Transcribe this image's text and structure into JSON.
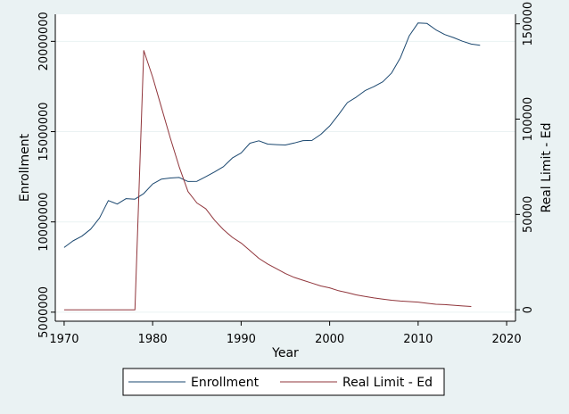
{
  "chart_data": {
    "type": "line",
    "title": "",
    "xlabel": "Year",
    "ylabel_left": "Enrollment",
    "ylabel_right": "Real Limit - Ed",
    "xlim": [
      1969,
      2021
    ],
    "ylim_left": [
      4500000,
      21500000
    ],
    "ylim_right": [
      -6000,
      155000
    ],
    "x_ticks": [
      1970,
      1980,
      1990,
      2000,
      2010,
      2020
    ],
    "y_ticks_left": [
      5000000,
      10000000,
      15000000,
      20000000
    ],
    "y_ticks_right": [
      0,
      50000,
      100000,
      150000
    ],
    "grid": true,
    "legend_position": "bottom",
    "series": [
      {
        "name": "Enrollment",
        "axis": "left",
        "color": "#1a476f",
        "x": [
          1970,
          1971,
          1972,
          1973,
          1974,
          1975,
          1976,
          1977,
          1978,
          1979,
          1980,
          1981,
          1982,
          1983,
          1984,
          1985,
          1986,
          1987,
          1988,
          1989,
          1990,
          1991,
          1992,
          1993,
          1994,
          1995,
          1996,
          1997,
          1998,
          1999,
          2000,
          2001,
          2002,
          2003,
          2004,
          2005,
          2006,
          2007,
          2008,
          2009,
          2010,
          2011,
          2012,
          2013,
          2014,
          2015,
          2016,
          2017
        ],
        "values": [
          8580000,
          8950000,
          9210000,
          9600000,
          10220000,
          11180000,
          10990000,
          11290000,
          11260000,
          11570000,
          12100000,
          12370000,
          12430000,
          12460000,
          12240000,
          12250000,
          12500000,
          12770000,
          13060000,
          13540000,
          13820000,
          14360000,
          14490000,
          14310000,
          14280000,
          14260000,
          14370000,
          14500000,
          14510000,
          14850000,
          15310000,
          15930000,
          16610000,
          16910000,
          17270000,
          17490000,
          17760000,
          18250000,
          19100000,
          20310000,
          21020000,
          20990000,
          20640000,
          20380000,
          20210000,
          20010000,
          19850000,
          19780000
        ]
      },
      {
        "name": "Real Limit - Ed",
        "axis": "right",
        "color": "#90353b",
        "x": [
          1970,
          1971,
          1972,
          1973,
          1974,
          1975,
          1976,
          1977,
          1978,
          1979,
          1980,
          1981,
          1982,
          1983,
          1984,
          1985,
          1986,
          1987,
          1988,
          1989,
          1990,
          1991,
          1992,
          1993,
          1994,
          1995,
          1996,
          1997,
          1998,
          1999,
          2000,
          2001,
          2002,
          2003,
          2004,
          2005,
          2006,
          2007,
          2008,
          2009,
          2010,
          2011,
          2012,
          2013,
          2014,
          2015,
          2016
        ],
        "values": [
          0,
          0,
          0,
          0,
          0,
          0,
          0,
          0,
          0,
          136000,
          122000,
          106000,
          90000,
          75000,
          62000,
          56000,
          53000,
          47000,
          42000,
          38000,
          35000,
          31000,
          27000,
          24000,
          21500,
          19000,
          17000,
          15500,
          14000,
          12500,
          11500,
          10000,
          9000,
          7800,
          7000,
          6200,
          5600,
          5000,
          4600,
          4300,
          4000,
          3400,
          2900,
          2700,
          2400,
          2000,
          1700
        ]
      }
    ]
  }
}
